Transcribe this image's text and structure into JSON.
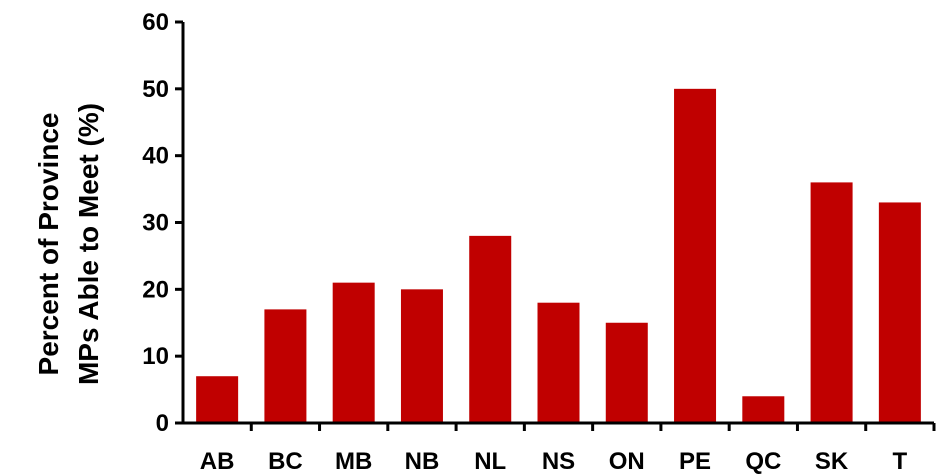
{
  "chart_data": {
    "type": "bar",
    "title": "",
    "xlabel": "",
    "ylabel_lines": [
      "Percent of Province",
      "MPs Able to Meet (%)"
    ],
    "categories": [
      "AB",
      "BC",
      "MB",
      "NB",
      "NL",
      "NS",
      "ON",
      "PE",
      "QC",
      "SK",
      "T"
    ],
    "values": [
      7,
      17,
      21,
      20,
      28,
      18,
      15,
      50,
      4,
      36,
      33
    ],
    "ylim": [
      0,
      60
    ],
    "yticks": [
      0,
      10,
      20,
      30,
      40,
      50,
      60
    ],
    "grid": false,
    "legend": "none",
    "bar_color": "#c00000"
  }
}
